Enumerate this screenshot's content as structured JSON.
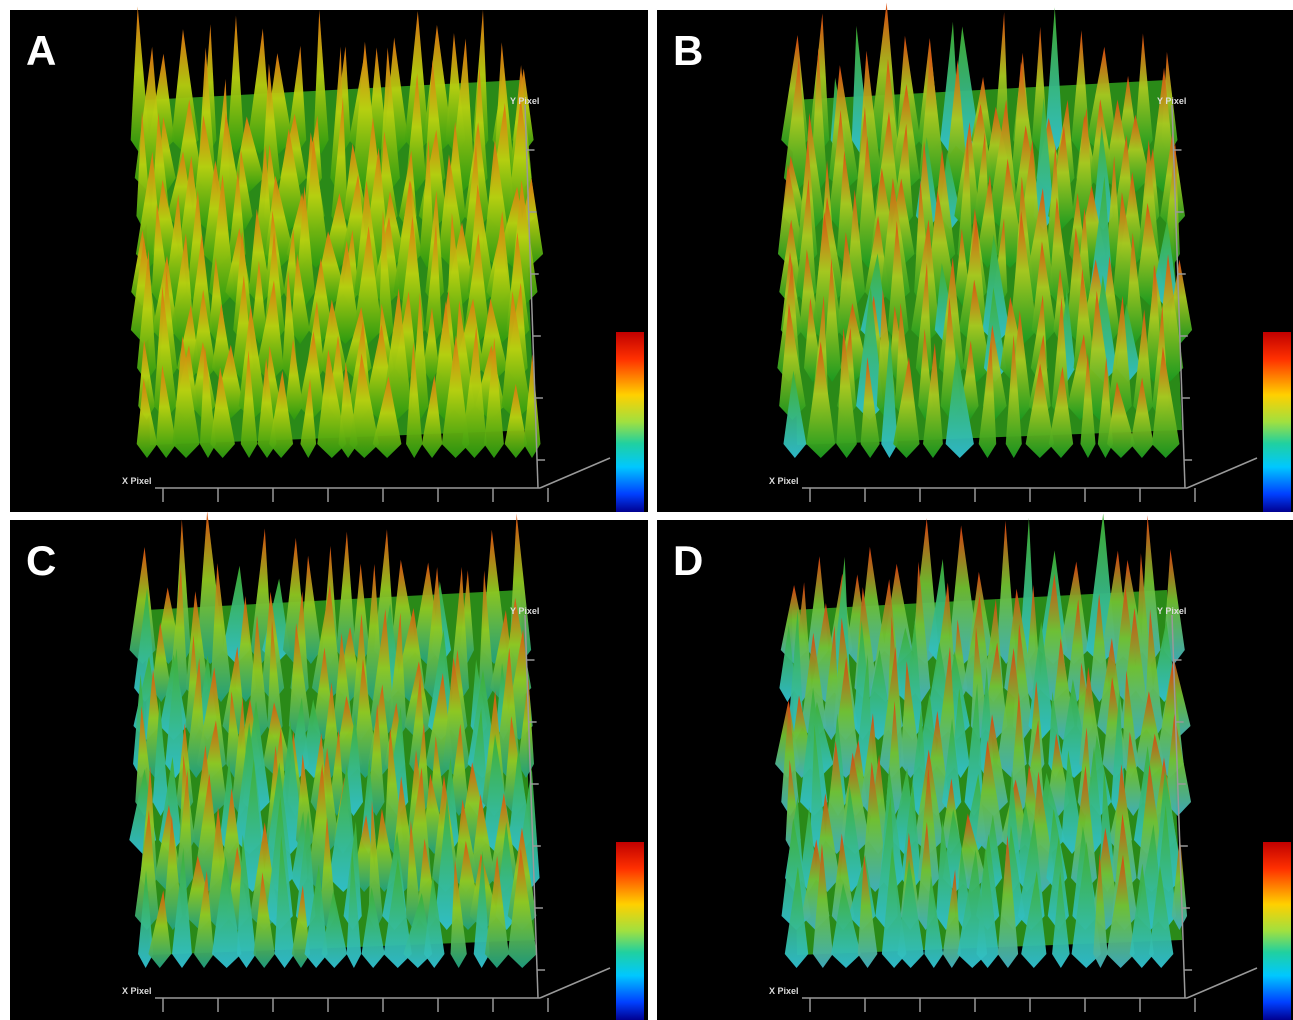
{
  "panels": [
    {
      "label": "A",
      "x_axis": "X Pixel",
      "y_axis": "Y Pixel"
    },
    {
      "label": "B",
      "x_axis": "X Pixel",
      "y_axis": "Y Pixel"
    },
    {
      "label": "C",
      "x_axis": "X Pixel",
      "y_axis": "Y Pixel"
    },
    {
      "label": "D",
      "x_axis": "X Pixel",
      "y_axis": "Y Pixel"
    }
  ]
}
